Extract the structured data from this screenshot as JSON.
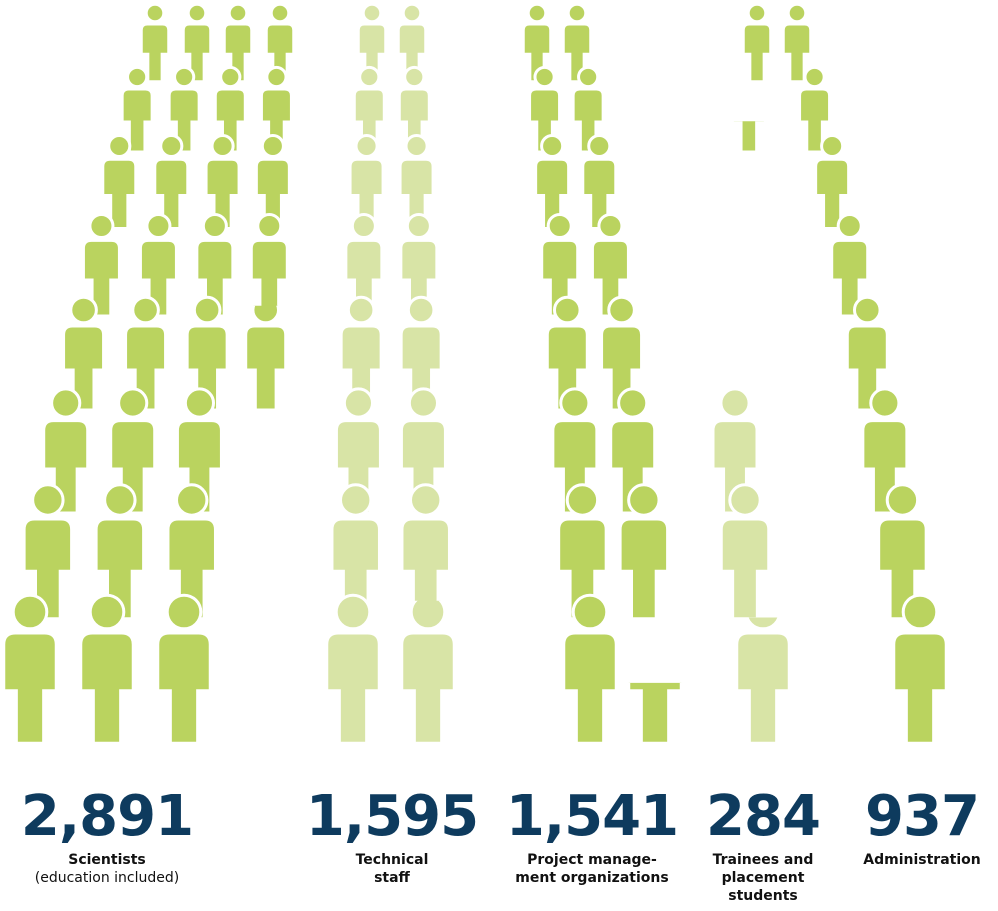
{
  "chart_data": {
    "type": "pictogram",
    "series": [
      {
        "name_lines": [
          "Scientists"
        ],
        "subtitle": "(education included)",
        "values": [
          2891
        ],
        "value_labels": [
          "2,891"
        ],
        "color": "#bad35f"
      },
      {
        "name_lines": [
          "Technical",
          "staff"
        ],
        "values": [
          1595
        ],
        "value_labels": [
          "1,595"
        ],
        "color": "#d8e4a6"
      },
      {
        "name_lines": [
          "Project manage-",
          "ment organizations"
        ],
        "values": [
          1541
        ],
        "value_labels": [
          "1,541"
        ],
        "color": "#bad35f"
      },
      {
        "name_lines": [
          "Trainees and",
          "placement",
          "students"
        ],
        "values": [
          284
        ],
        "value_labels": [
          "284"
        ],
        "color": "#d8e4a6"
      },
      {
        "name_lines": [
          "Administration"
        ],
        "values": [
          937
        ],
        "value_labels": [
          "937"
        ],
        "color": "#bad35f"
      }
    ]
  }
}
